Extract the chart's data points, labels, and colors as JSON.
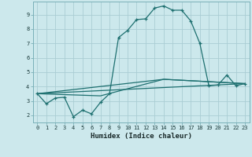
{
  "xlabel": "Humidex (Indice chaleur)",
  "bg_color": "#cce8ec",
  "grid_color": "#aacdd4",
  "line_color": "#1e7070",
  "xlim": [
    -0.5,
    23.5
  ],
  "ylim": [
    1.5,
    9.9
  ],
  "xticks": [
    0,
    1,
    2,
    3,
    4,
    5,
    6,
    7,
    8,
    9,
    10,
    11,
    12,
    13,
    14,
    15,
    16,
    17,
    18,
    19,
    20,
    21,
    22,
    23
  ],
  "yticks": [
    2,
    3,
    4,
    5,
    6,
    7,
    8,
    9
  ],
  "line1_x": [
    0,
    1,
    2,
    3,
    4,
    5,
    6,
    7,
    8,
    9,
    10,
    11,
    12,
    13,
    14,
    15,
    16,
    17,
    18,
    19,
    20,
    21,
    22,
    23
  ],
  "line1_y": [
    3.5,
    2.8,
    3.2,
    3.25,
    1.9,
    2.35,
    2.1,
    2.9,
    3.5,
    7.4,
    7.9,
    8.65,
    8.7,
    9.45,
    9.6,
    9.3,
    9.3,
    8.55,
    7.0,
    4.05,
    4.1,
    4.8,
    4.05,
    4.2
  ],
  "line2_x": [
    0,
    23
  ],
  "line2_y": [
    3.5,
    4.2
  ],
  "line3_x": [
    0,
    14,
    23
  ],
  "line3_y": [
    3.5,
    4.5,
    4.2
  ],
  "line4_x": [
    0,
    7,
    14,
    23
  ],
  "line4_y": [
    3.5,
    3.35,
    4.5,
    4.2
  ]
}
